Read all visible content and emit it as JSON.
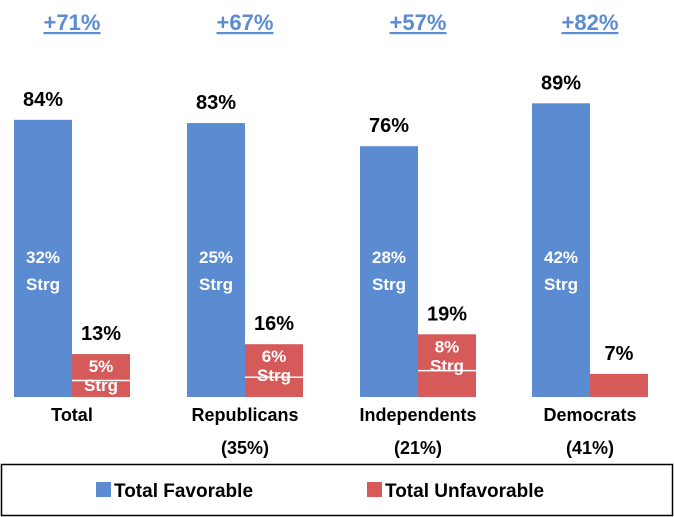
{
  "chart_data": {
    "type": "bar",
    "categories": [
      "Total",
      "Republicans",
      "Independents",
      "Democrats"
    ],
    "category_shares": [
      "",
      "(35%)",
      "(21%)",
      "(41%)"
    ],
    "net_labels": [
      "+71%",
      "+67%",
      "+57%",
      "+82%"
    ],
    "series": [
      {
        "name": "Total Favorable",
        "color": "#5b8bd0",
        "values": [
          84,
          83,
          76,
          89
        ],
        "labels": [
          "84%",
          "83%",
          "76%",
          "89%"
        ],
        "strong_values": [
          32,
          25,
          28,
          42
        ],
        "strong_labels": [
          "32%",
          "25%",
          "28%",
          "42%"
        ]
      },
      {
        "name": "Total Unfavorable",
        "color": "#d65a5a",
        "values": [
          13,
          16,
          19,
          7
        ],
        "labels": [
          "13%",
          "16%",
          "19%",
          "7%"
        ],
        "strong_values": [
          5,
          6,
          8,
          null
        ],
        "strong_labels": [
          "5%",
          "6%",
          "8%",
          ""
        ]
      }
    ],
    "strong_suffix": "Strg",
    "ylim": [
      0,
      100
    ],
    "legend_position": "bottom"
  }
}
